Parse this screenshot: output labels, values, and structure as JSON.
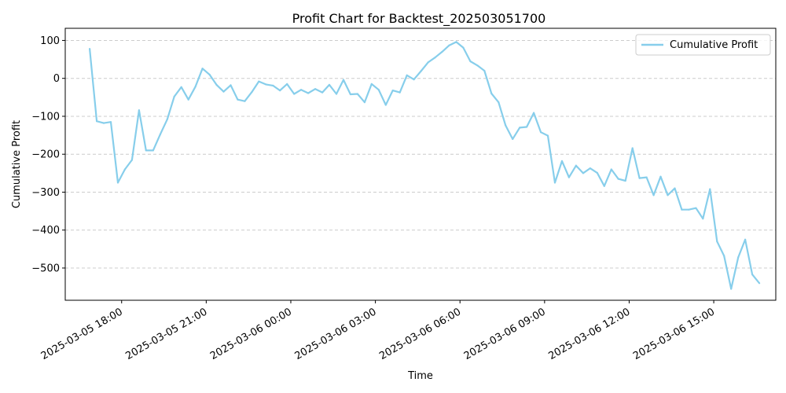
{
  "chart_data": {
    "type": "line",
    "title": "Profit Chart for Backtest_202503051700",
    "xlabel": "Time",
    "ylabel": "Cumulative Profit",
    "ylim": [
      -585,
      132
    ],
    "xlim_hours": [
      -20.1,
      -16.8
    ],
    "x_ticks": [
      {
        "label": "2025-03-05 18:00",
        "hour": 18
      },
      {
        "label": "2025-03-05 21:00",
        "hour": 21
      },
      {
        "label": "2025-03-06 00:00",
        "hour": 24
      },
      {
        "label": "2025-03-06 03:00",
        "hour": 27
      },
      {
        "label": "2025-03-06 06:00",
        "hour": 30
      },
      {
        "label": "2025-03-06 09:00",
        "hour": 33
      },
      {
        "label": "2025-03-06 12:00",
        "hour": 36
      },
      {
        "label": "2025-03-06 15:00",
        "hour": 39
      }
    ],
    "y_ticks": [
      {
        "label": "100",
        "value": 100
      },
      {
        "label": "0",
        "value": 0
      },
      {
        "label": "−100",
        "value": -100
      },
      {
        "label": "−200",
        "value": -200
      },
      {
        "label": "−300",
        "value": -300
      },
      {
        "label": "−400",
        "value": -400
      },
      {
        "label": "−500",
        "value": -500
      }
    ],
    "grid": "y-dashed",
    "legend": "top-right",
    "series": [
      {
        "name": "Cumulative Profit",
        "color": "#87CEEB",
        "points": [
          [
            16.867,
            78
          ],
          [
            17.117,
            -113
          ],
          [
            17.367,
            -118
          ],
          [
            17.617,
            -115
          ],
          [
            17.867,
            -275
          ],
          [
            18.117,
            -240
          ],
          [
            18.367,
            -215
          ],
          [
            18.617,
            -84
          ],
          [
            18.867,
            -190
          ],
          [
            19.117,
            -190
          ],
          [
            19.367,
            -148
          ],
          [
            19.617,
            -108
          ],
          [
            19.867,
            -48
          ],
          [
            20.117,
            -23
          ],
          [
            20.367,
            -56
          ],
          [
            20.617,
            -22
          ],
          [
            20.867,
            26
          ],
          [
            21.117,
            10
          ],
          [
            21.367,
            -17
          ],
          [
            21.617,
            -35
          ],
          [
            21.867,
            -18
          ],
          [
            22.117,
            -56
          ],
          [
            22.367,
            -60
          ],
          [
            22.617,
            -36
          ],
          [
            22.867,
            -8
          ],
          [
            23.117,
            -16
          ],
          [
            23.367,
            -19
          ],
          [
            23.617,
            -32
          ],
          [
            23.867,
            -15
          ],
          [
            24.117,
            -41
          ],
          [
            24.367,
            -30
          ],
          [
            24.617,
            -39
          ],
          [
            24.867,
            -28
          ],
          [
            25.117,
            -37
          ],
          [
            25.367,
            -17
          ],
          [
            25.617,
            -41
          ],
          [
            25.867,
            -4
          ],
          [
            26.117,
            -42
          ],
          [
            26.367,
            -41
          ],
          [
            26.617,
            -63
          ],
          [
            26.867,
            -15
          ],
          [
            27.117,
            -30
          ],
          [
            27.367,
            -70
          ],
          [
            27.617,
            -32
          ],
          [
            27.867,
            -37
          ],
          [
            28.117,
            8
          ],
          [
            28.367,
            -3
          ],
          [
            28.617,
            19
          ],
          [
            28.867,
            42
          ],
          [
            29.117,
            55
          ],
          [
            29.367,
            70
          ],
          [
            29.617,
            87
          ],
          [
            29.867,
            96
          ],
          [
            30.117,
            81
          ],
          [
            30.367,
            45
          ],
          [
            30.617,
            34
          ],
          [
            30.867,
            20
          ],
          [
            31.117,
            -40
          ],
          [
            31.367,
            -63
          ],
          [
            31.617,
            -124
          ],
          [
            31.867,
            -160
          ],
          [
            32.117,
            -130
          ],
          [
            32.367,
            -128
          ],
          [
            32.617,
            -91
          ],
          [
            32.867,
            -142
          ],
          [
            33.117,
            -151
          ],
          [
            33.367,
            -275
          ],
          [
            33.617,
            -218
          ],
          [
            33.867,
            -261
          ],
          [
            34.117,
            -230
          ],
          [
            34.367,
            -250
          ],
          [
            34.617,
            -237
          ],
          [
            34.867,
            -249
          ],
          [
            35.117,
            -284
          ],
          [
            35.367,
            -240
          ],
          [
            35.617,
            -265
          ],
          [
            35.867,
            -270
          ],
          [
            36.117,
            -184
          ],
          [
            36.367,
            -263
          ],
          [
            36.617,
            -261
          ],
          [
            36.867,
            -308
          ],
          [
            37.117,
            -259
          ],
          [
            37.367,
            -308
          ],
          [
            37.617,
            -290
          ],
          [
            37.867,
            -346
          ],
          [
            38.117,
            -346
          ],
          [
            38.367,
            -342
          ],
          [
            38.617,
            -370
          ],
          [
            38.867,
            -292
          ],
          [
            39.117,
            -430
          ],
          [
            39.367,
            -468
          ],
          [
            39.617,
            -555
          ],
          [
            39.867,
            -472
          ],
          [
            40.117,
            -425
          ],
          [
            40.367,
            -517
          ],
          [
            40.617,
            -540
          ]
        ]
      }
    ]
  }
}
